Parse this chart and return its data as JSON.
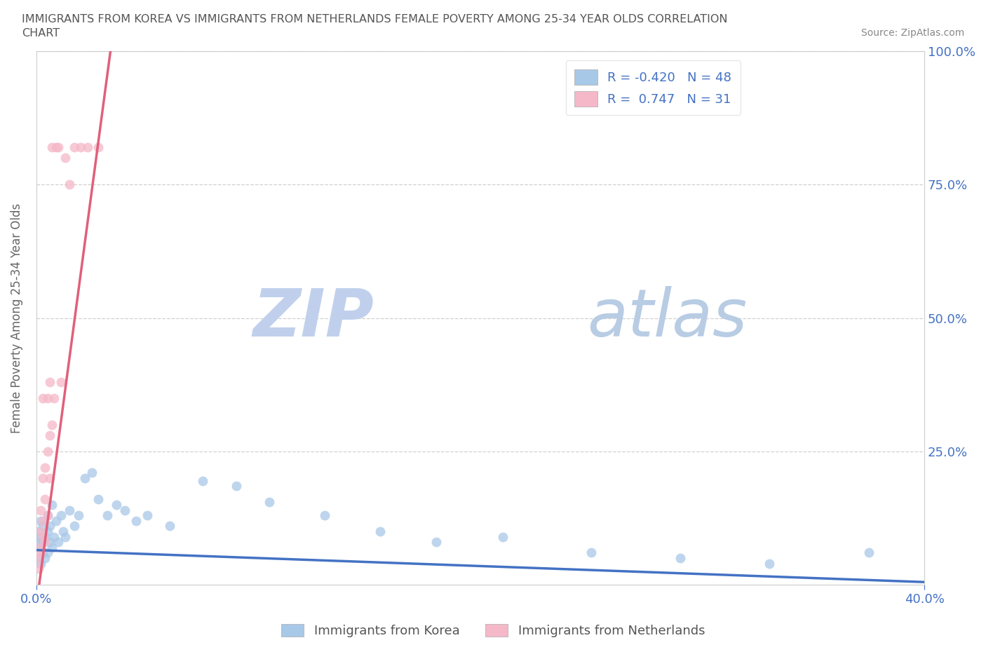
{
  "title_line1": "IMMIGRANTS FROM KOREA VS IMMIGRANTS FROM NETHERLANDS FEMALE POVERTY AMONG 25-34 YEAR OLDS CORRELATION",
  "title_line2": "CHART",
  "source": "Source: ZipAtlas.com",
  "ylabel": "Female Poverty Among 25-34 Year Olds",
  "korea_color": "#a8c8e8",
  "netherlands_color": "#f5b8c8",
  "korea_line_color": "#4472c4",
  "netherlands_line_color": "#e0607a",
  "axis_color": "#4472c4",
  "watermark_zip_color": "#c8d8f0",
  "watermark_atlas_color": "#c8d8e8",
  "xlim": [
    0.0,
    0.4
  ],
  "ylim": [
    0.0,
    1.0
  ],
  "korea_x": [
    0.001,
    0.001,
    0.001,
    0.002,
    0.002,
    0.002,
    0.002,
    0.003,
    0.003,
    0.003,
    0.004,
    0.004,
    0.005,
    0.005,
    0.005,
    0.006,
    0.006,
    0.007,
    0.007,
    0.008,
    0.009,
    0.01,
    0.011,
    0.012,
    0.013,
    0.015,
    0.017,
    0.019,
    0.022,
    0.025,
    0.028,
    0.032,
    0.036,
    0.04,
    0.045,
    0.05,
    0.06,
    0.075,
    0.09,
    0.105,
    0.13,
    0.155,
    0.18,
    0.21,
    0.25,
    0.29,
    0.33,
    0.375
  ],
  "korea_y": [
    0.05,
    0.08,
    0.1,
    0.04,
    0.07,
    0.09,
    0.12,
    0.06,
    0.08,
    0.11,
    0.05,
    0.09,
    0.06,
    0.1,
    0.13,
    0.08,
    0.11,
    0.07,
    0.15,
    0.09,
    0.12,
    0.08,
    0.13,
    0.1,
    0.09,
    0.14,
    0.11,
    0.13,
    0.2,
    0.21,
    0.16,
    0.13,
    0.15,
    0.14,
    0.12,
    0.13,
    0.11,
    0.195,
    0.185,
    0.155,
    0.13,
    0.1,
    0.08,
    0.09,
    0.06,
    0.05,
    0.04,
    0.06
  ],
  "netherlands_x": [
    0.001,
    0.001,
    0.001,
    0.002,
    0.002,
    0.002,
    0.003,
    0.003,
    0.003,
    0.003,
    0.004,
    0.004,
    0.004,
    0.005,
    0.005,
    0.005,
    0.006,
    0.006,
    0.006,
    0.007,
    0.007,
    0.008,
    0.009,
    0.01,
    0.011,
    0.013,
    0.015,
    0.017,
    0.02,
    0.023,
    0.028
  ],
  "netherlands_y": [
    0.05,
    0.03,
    0.07,
    0.06,
    0.1,
    0.14,
    0.09,
    0.12,
    0.2,
    0.35,
    0.08,
    0.16,
    0.22,
    0.13,
    0.25,
    0.35,
    0.2,
    0.28,
    0.38,
    0.3,
    0.82,
    0.35,
    0.82,
    0.82,
    0.38,
    0.8,
    0.75,
    0.82,
    0.82,
    0.82,
    0.82
  ],
  "korea_trend": [
    0.0,
    0.4,
    0.065,
    0.005
  ],
  "netherlands_trend": [
    0.0,
    0.035,
    -0.04,
    1.05
  ]
}
